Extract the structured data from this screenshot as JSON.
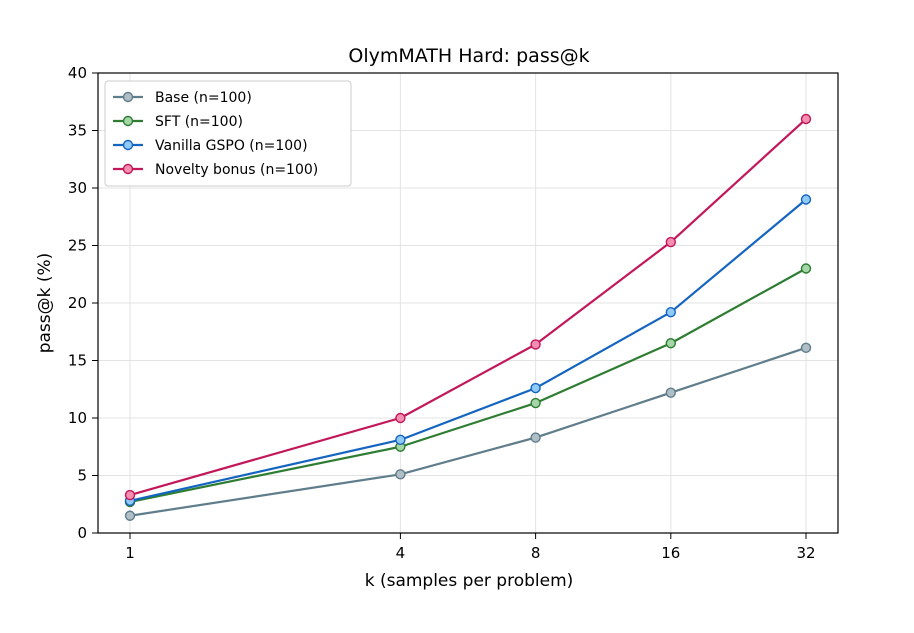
{
  "chart_data": {
    "type": "line",
    "title": "OlymMATH Hard: pass@k",
    "xlabel": "k (samples per problem)",
    "ylabel": "pass@k (%)",
    "x": [
      1,
      4,
      8,
      16,
      32
    ],
    "x_scale": "log2",
    "x_ticks": [
      "1",
      "4",
      "8",
      "16",
      "32"
    ],
    "ylim": [
      0,
      40
    ],
    "y_ticks": [
      "0",
      "5",
      "10",
      "15",
      "20",
      "25",
      "30",
      "35",
      "40"
    ],
    "grid": true,
    "legend_position": "top-left",
    "series": [
      {
        "name": "Base (n=100)",
        "values": [
          1.5,
          5.1,
          8.3,
          12.2,
          16.1
        ],
        "color": "#607d8b",
        "marker_fill": "#b0bec5"
      },
      {
        "name": "SFT (n=100)",
        "values": [
          2.7,
          7.5,
          11.3,
          16.5,
          23.0
        ],
        "color": "#2e7d32",
        "marker_fill": "#a5d6a7"
      },
      {
        "name": "Vanilla GSPO (n=100)",
        "values": [
          2.8,
          8.1,
          12.6,
          19.2,
          29.0
        ],
        "color": "#1565c0",
        "marker_fill": "#90caf9"
      },
      {
        "name": "Novelty bonus (n=100)",
        "values": [
          3.3,
          10.0,
          16.4,
          25.3,
          36.0
        ],
        "color": "#c2185b",
        "marker_fill": "#f48fb1"
      }
    ]
  }
}
